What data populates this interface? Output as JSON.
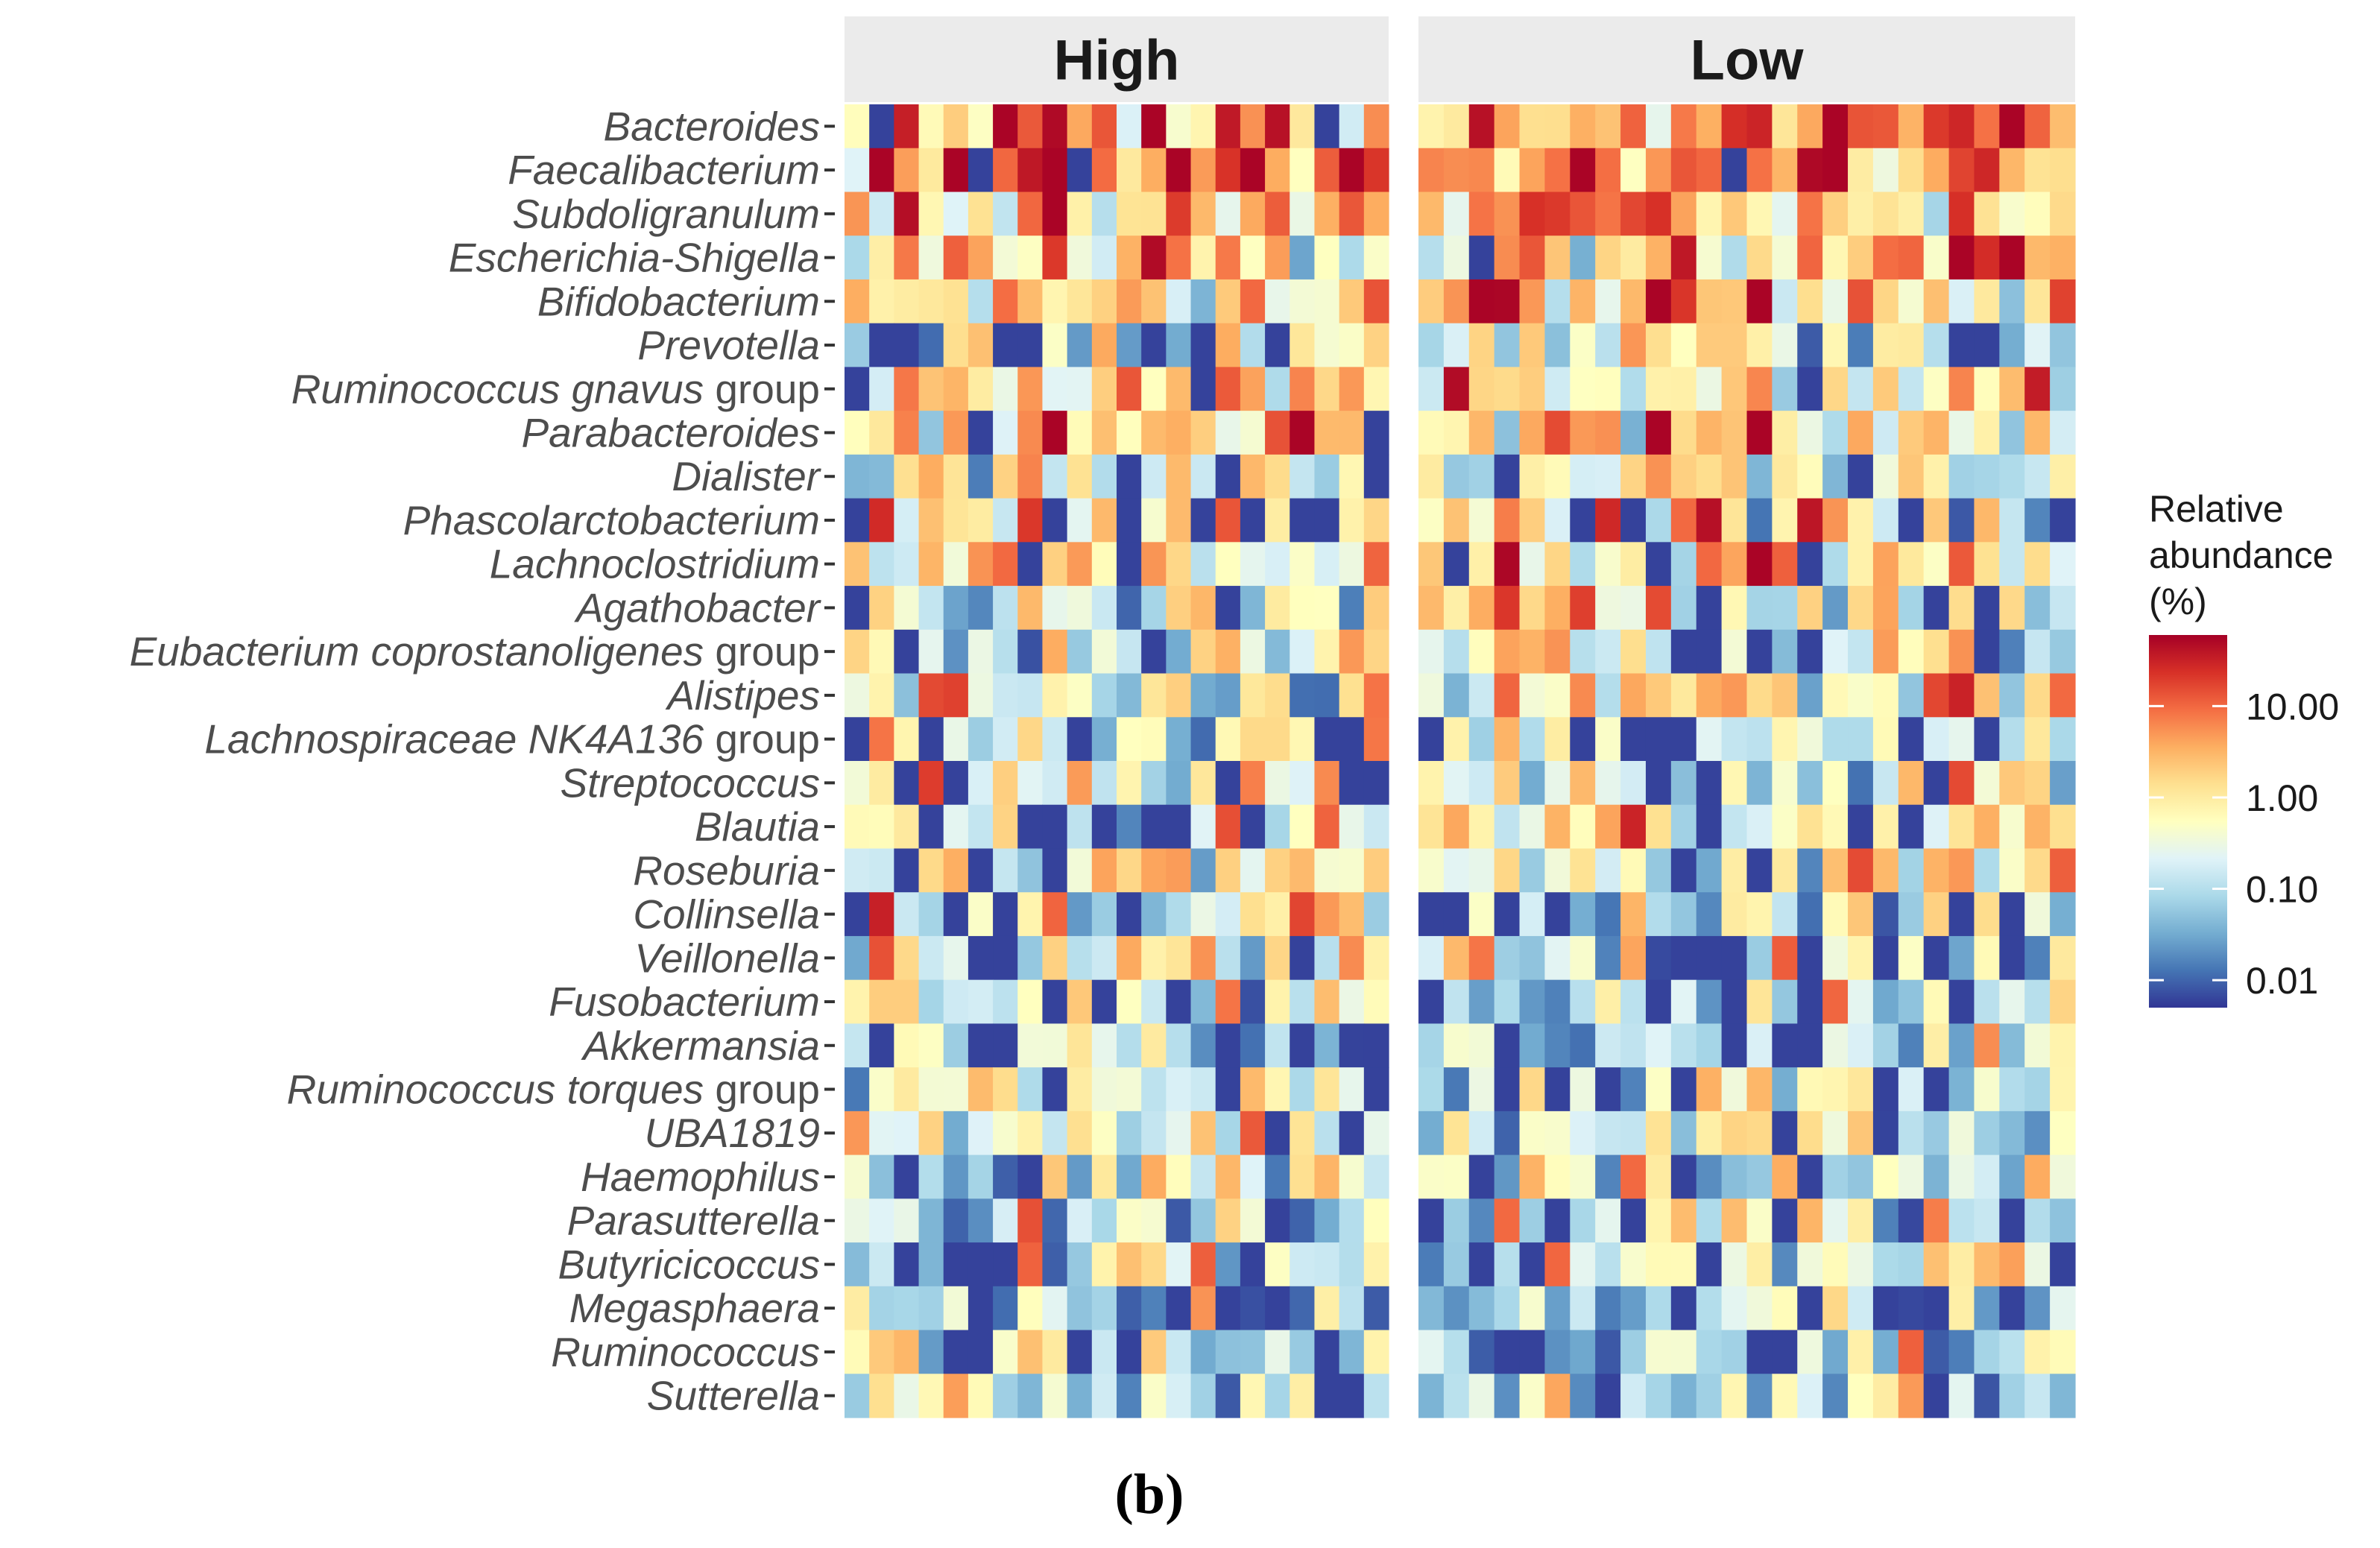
{
  "chart_data": {
    "type": "heatmap",
    "title": "",
    "xlabel": "",
    "ylabel": "",
    "subfigure_label": "(b)",
    "panels": [
      {
        "name": "High",
        "n_samples": 22
      },
      {
        "name": "Low",
        "n_samples": 26
      }
    ],
    "rows": [
      "Bacteroides",
      "Faecalibacterium",
      "Subdoligranulum",
      "Escherichia-Shigella",
      "Bifidobacterium",
      "Prevotella",
      "Ruminococcus gnavus group",
      "Parabacteroides",
      "Dialister",
      "Phascolarctobacterium",
      "Lachnoclostridium",
      "Agathobacter",
      "Eubacterium coprostanoligenes group",
      "Alistipes",
      "Lachnospiraceae NK4A136 group",
      "Streptococcus",
      "Blautia",
      "Roseburia",
      "Collinsella",
      "Veillonella",
      "Fusobacterium",
      "Akkermansia",
      "Ruminococcus torques group",
      "UBA1819",
      "Haemophilus",
      "Parasutterella",
      "Butyricicoccus",
      "Megasphaera",
      "Ruminococcus",
      "Sutterella"
    ],
    "row_label_italic_parts": [
      {
        "italic": "Bacteroides",
        "plain": ""
      },
      {
        "italic": "Faecalibacterium",
        "plain": ""
      },
      {
        "italic": "Subdoligranulum",
        "plain": ""
      },
      {
        "italic": "Escherichia-Shigella",
        "plain": ""
      },
      {
        "italic": "Bifidobacterium",
        "plain": ""
      },
      {
        "italic": "Prevotella",
        "plain": ""
      },
      {
        "italic": "Ruminococcus gnavus",
        "plain": " group"
      },
      {
        "italic": "Parabacteroides",
        "plain": ""
      },
      {
        "italic": "Dialister",
        "plain": ""
      },
      {
        "italic": "Phascolarctobacterium",
        "plain": ""
      },
      {
        "italic": "Lachnoclostridium",
        "plain": ""
      },
      {
        "italic": "Agathobacter",
        "plain": ""
      },
      {
        "italic": "Eubacterium coprostanoligenes",
        "plain": " group"
      },
      {
        "italic": "Alistipes",
        "plain": ""
      },
      {
        "italic": "Lachnospiraceae NK4A136",
        "plain": " group"
      },
      {
        "italic": "Streptococcus",
        "plain": ""
      },
      {
        "italic": "Blautia",
        "plain": ""
      },
      {
        "italic": "Roseburia",
        "plain": ""
      },
      {
        "italic": "Collinsella",
        "plain": ""
      },
      {
        "italic": "Veillonella",
        "plain": ""
      },
      {
        "italic": "Fusobacterium",
        "plain": ""
      },
      {
        "italic": "Akkermansia",
        "plain": ""
      },
      {
        "italic": "Ruminococcus torques",
        "plain": " group"
      },
      {
        "italic": "UBA1819",
        "plain": ""
      },
      {
        "italic": "Haemophilus",
        "plain": ""
      },
      {
        "italic": "Parasutterella",
        "plain": ""
      },
      {
        "italic": "Butyricicoccus",
        "plain": ""
      },
      {
        "italic": "Megasphaera",
        "plain": ""
      },
      {
        "italic": "Ruminococcus",
        "plain": ""
      },
      {
        "italic": "Sutterella",
        "plain": ""
      }
    ],
    "row_typical_abundance_pct": {
      "Bacteroides": 12.0,
      "Faecalibacterium": 6.0,
      "Subdoligranulum": 2.5,
      "Escherichia-Shigella": 1.2,
      "Bifidobacterium": 1.5,
      "Prevotella": 0.3,
      "Ruminococcus gnavus group": 1.2,
      "Parabacteroides": 1.5,
      "Dialister": 0.4,
      "Phascolarctobacterium": 0.8,
      "Lachnoclostridium": 0.8,
      "Agathobacter": 0.5,
      "Eubacterium coprostanoligenes group": 0.4,
      "Alistipes": 0.5,
      "Lachnospiraceae NK4A136 group": 0.3,
      "Streptococcus": 0.4,
      "Blautia": 0.6,
      "Roseburia": 0.4,
      "Collinsella": 0.3,
      "Veillonella": 0.3,
      "Fusobacterium": 0.3,
      "Akkermansia": 0.1,
      "Ruminococcus torques group": 0.3,
      "UBA1819": 0.2,
      "Haemophilus": 0.15,
      "Parasutterella": 0.12,
      "Butyricicoccus": 0.2,
      "Megasphaera": 0.1,
      "Ruminococcus": 0.15,
      "Sutterella": 0.1
    },
    "colorbar": {
      "title_lines": [
        "Relative",
        "abundance",
        "(%)"
      ],
      "scale": "log10",
      "min": 0.005,
      "max": 60,
      "ticks": [
        0.01,
        0.1,
        1,
        10
      ],
      "tick_labels": [
        "0.01",
        "0.10",
        "1.00",
        "10.00"
      ],
      "palette": [
        "#313695",
        "#4575b4",
        "#74add1",
        "#abd9e9",
        "#e0f3f8",
        "#ffffbf",
        "#fee090",
        "#fdae61",
        "#f46d43",
        "#d73027",
        "#a50026"
      ]
    },
    "note": "Per-sample cell values are approximate estimates read from the color scale."
  }
}
